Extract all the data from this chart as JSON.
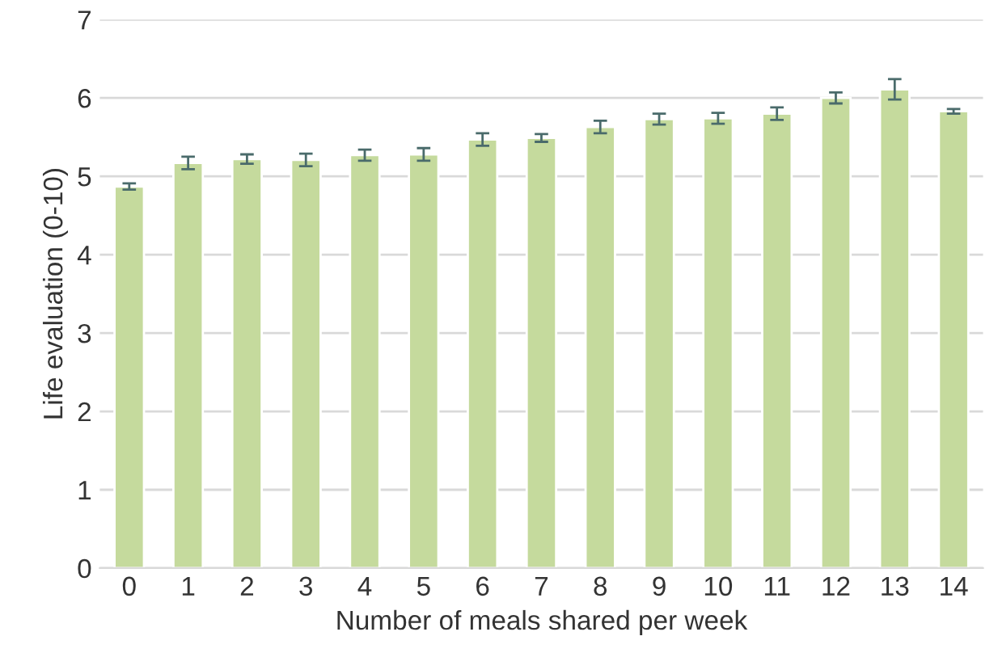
{
  "chart_data": {
    "type": "bar",
    "xlabel": "Number of meals shared per week",
    "ylabel": "Life evaluation (0-10)",
    "categories": [
      "0",
      "1",
      "2",
      "3",
      "4",
      "5",
      "6",
      "7",
      "8",
      "9",
      "10",
      "11",
      "12",
      "13",
      "14"
    ],
    "values": [
      4.87,
      5.17,
      5.22,
      5.21,
      5.27,
      5.28,
      5.47,
      5.49,
      5.63,
      5.73,
      5.74,
      5.8,
      6.0,
      6.11,
      5.83
    ],
    "errors": [
      0.04,
      0.08,
      0.06,
      0.08,
      0.07,
      0.08,
      0.08,
      0.05,
      0.08,
      0.07,
      0.07,
      0.08,
      0.07,
      0.13,
      0.03
    ],
    "color": "#c5da9d",
    "ylim": [
      0,
      7
    ],
    "yticks": [
      0,
      1,
      2,
      3,
      4,
      5,
      6,
      7
    ],
    "grid": "y"
  }
}
